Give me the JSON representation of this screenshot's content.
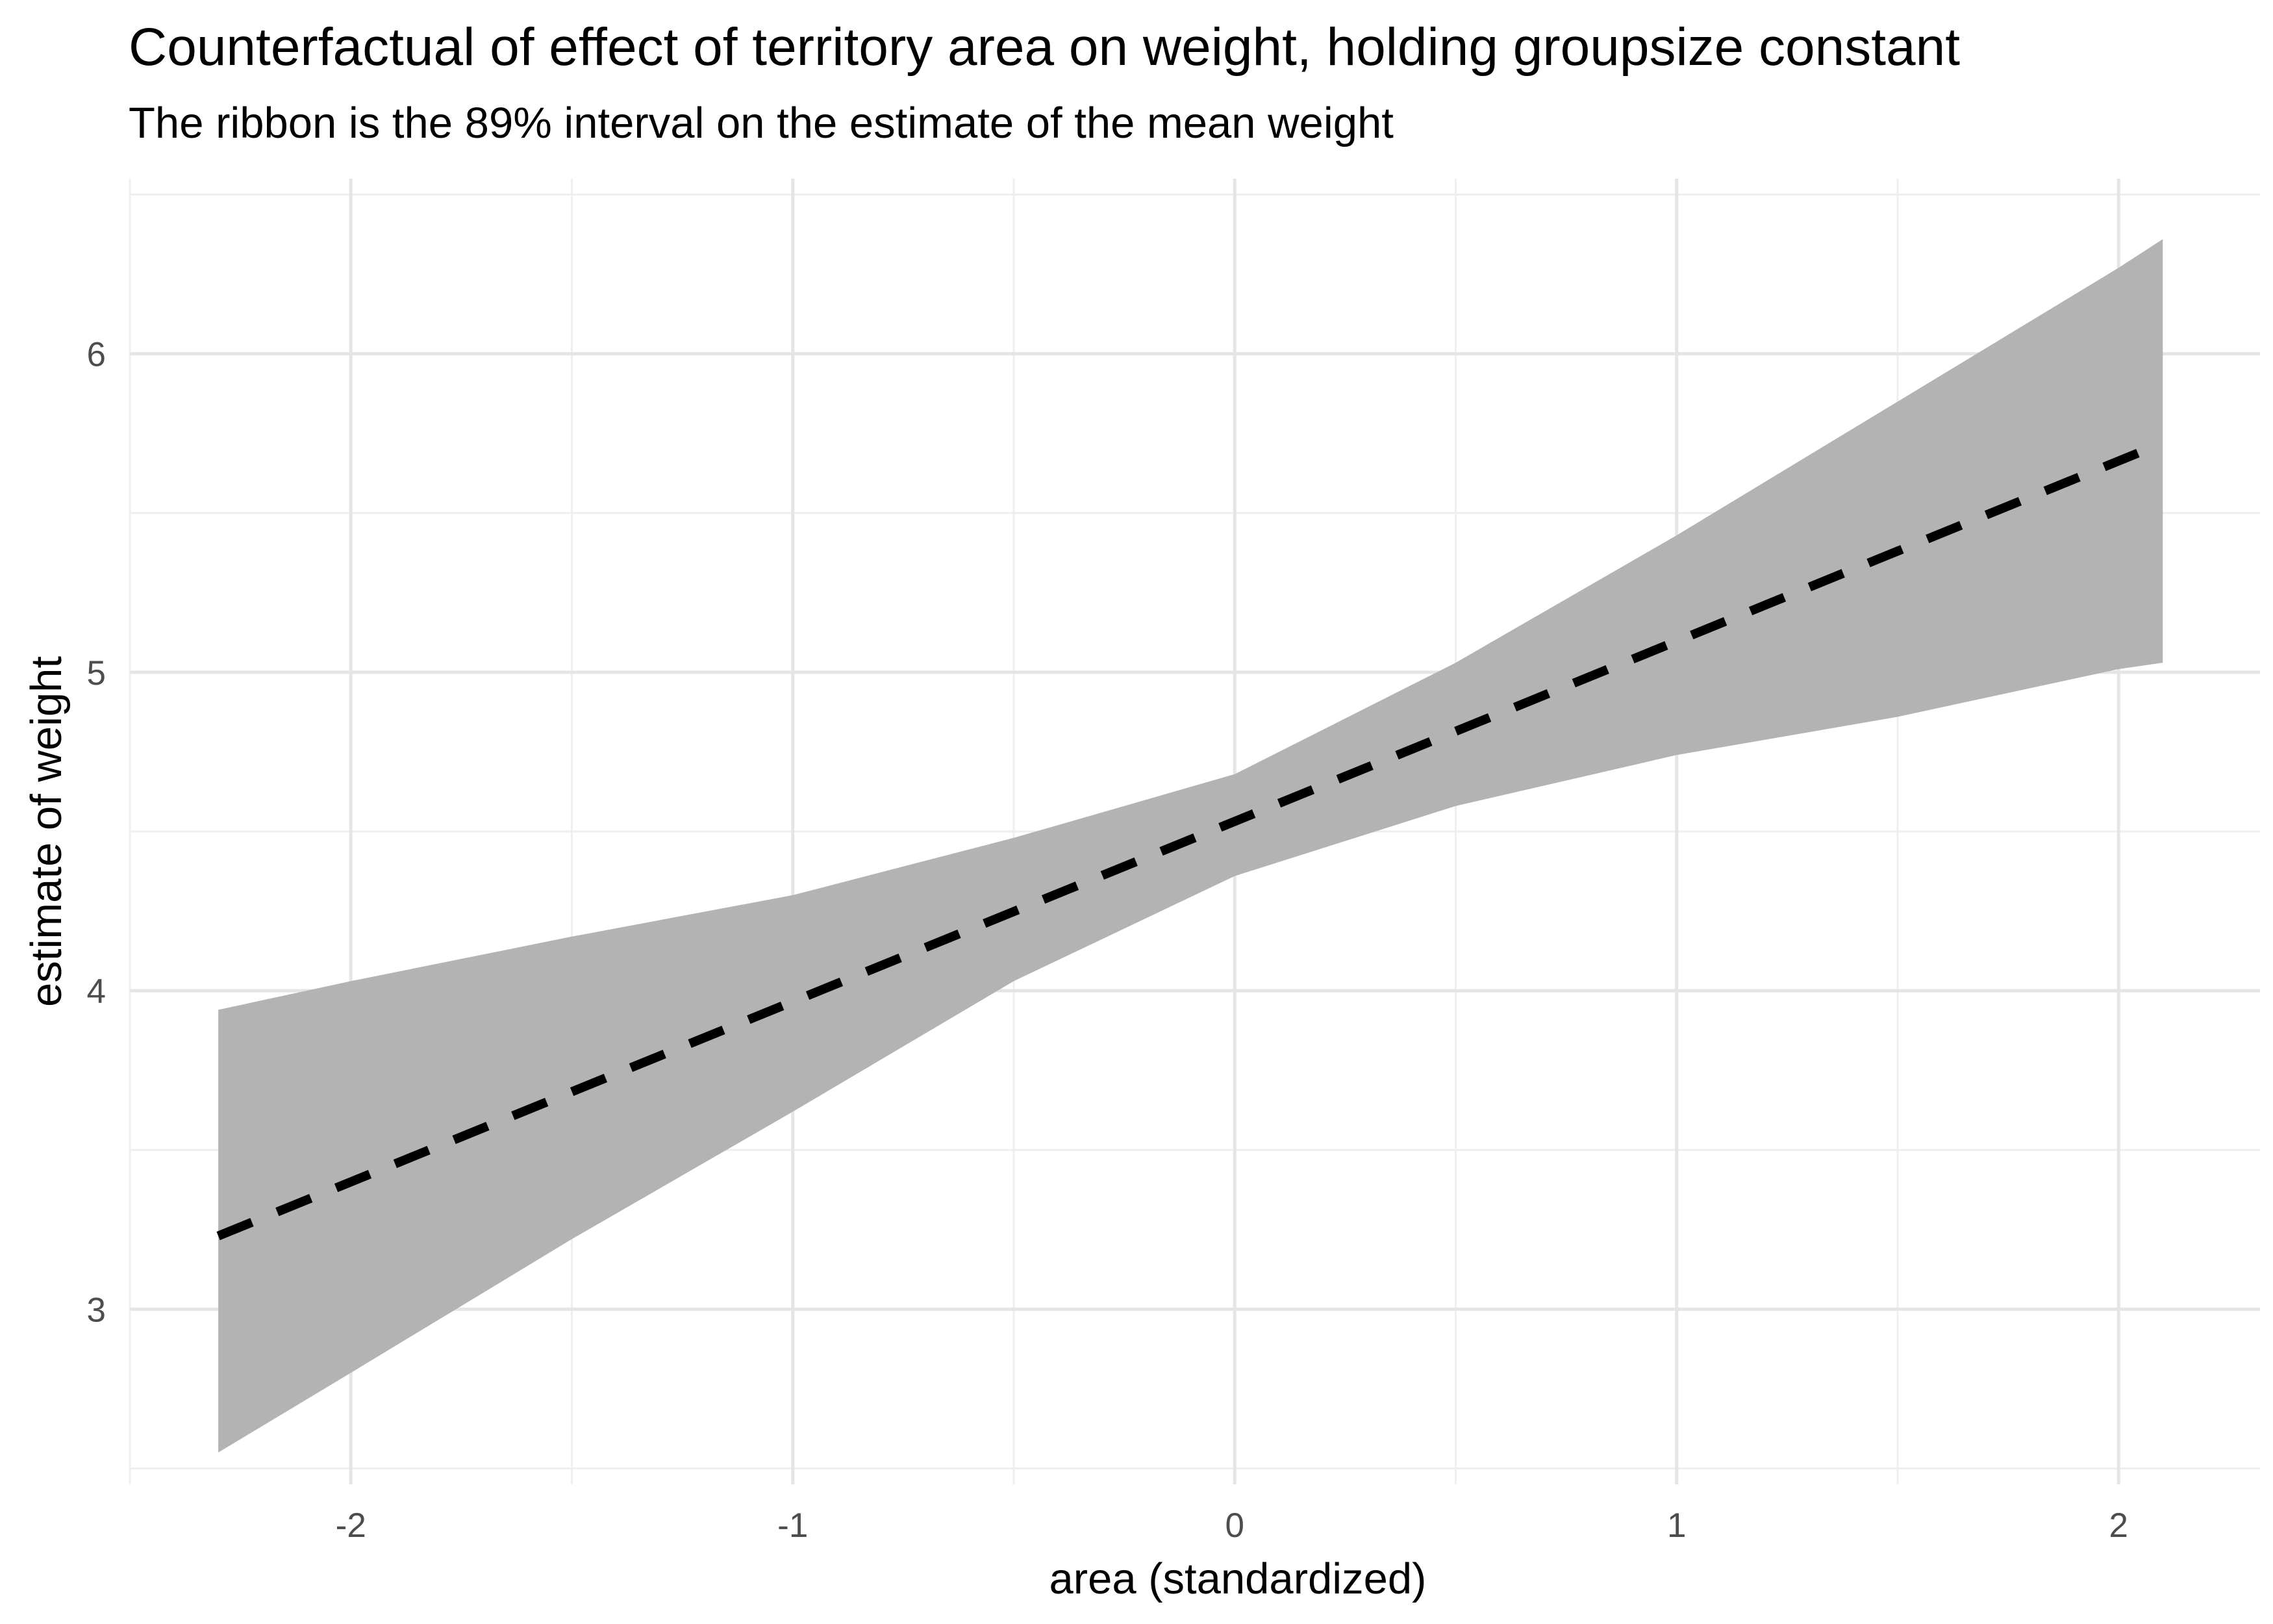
{
  "chart_data": {
    "type": "line",
    "title": "Counterfactual of effect of territory area on weight, holding groupsize constant",
    "subtitle": "The ribbon is the 89% interval on the estimate of the mean weight",
    "xlabel": "area (standardized)",
    "ylabel": "estimate of weight",
    "xlim": [
      -2.5,
      2.32
    ],
    "ylim": [
      2.45,
      6.55
    ],
    "x_ticks": [
      -2,
      -1,
      0,
      1,
      2
    ],
    "x_tick_labels": [
      "-2",
      "-1",
      "0",
      "1",
      "2"
    ],
    "y_ticks": [
      3,
      4,
      5,
      6
    ],
    "y_tick_labels": [
      "3",
      "4",
      "5",
      "6"
    ],
    "grid": true,
    "legend": "none",
    "colors": {
      "ribbon": "#b3b3b3",
      "line": "#000000",
      "grid_major": "#e5e5e5",
      "grid_minor": "#efefef"
    },
    "series": [
      {
        "type": "ribbon",
        "x": [
          -2.3,
          -2.0,
          -1.5,
          -1.0,
          -0.5,
          0.0,
          0.5,
          1.0,
          1.5,
          2.0,
          2.1
        ],
        "lower": [
          2.55,
          2.8,
          3.22,
          3.62,
          4.03,
          4.36,
          4.58,
          4.74,
          4.86,
          5.01,
          5.03
        ],
        "upper": [
          3.94,
          4.03,
          4.17,
          4.3,
          4.48,
          4.68,
          5.03,
          5.43,
          5.85,
          6.27,
          6.36
        ]
      },
      {
        "type": "line",
        "style": "dashed",
        "x": [
          -2.3,
          2.1
        ],
        "y": [
          3.23,
          5.72
        ]
      }
    ]
  }
}
